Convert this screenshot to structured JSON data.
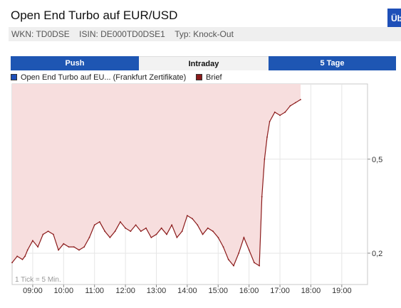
{
  "header": {
    "title": "Open End Turbo auf EUR/USD",
    "corner_button": "Übersicht",
    "wkn": "WKN: TD0DSE",
    "isin": "ISIN: DE000TD0DSE1",
    "typ": "Typ: Knock-Out"
  },
  "tabs": [
    {
      "label": "Push",
      "active": false
    },
    {
      "label": "Intraday",
      "active": true
    },
    {
      "label": "5 Tage",
      "active": false
    }
  ],
  "legend": [
    {
      "label": "Open End Turbo auf EU... (Frankfurt Zertifikate)",
      "color": "#1e4fb8"
    },
    {
      "label": "Brief",
      "color": "#8b1a1a"
    }
  ],
  "chart_data": {
    "type": "area",
    "tick_note": "1 Tick = 5 Min.",
    "x_tick_labels": [
      "09:00",
      "10:00",
      "11:00",
      "12:00",
      "13:00",
      "14:00",
      "15:00",
      "16:00",
      "17:00",
      "18:00",
      "19:00"
    ],
    "y_tick_labels": [
      "0,5",
      "0,2"
    ],
    "y_ticks": [
      0.5,
      0.2
    ],
    "xlim": [
      "08:20",
      "19:50"
    ],
    "ylim": [
      0.1,
      0.74
    ],
    "grid": true,
    "series": [
      {
        "name": "Brief",
        "color": "#8b1a1a",
        "fill": "#f7dede",
        "x": [
          "08:20",
          "08:30",
          "08:40",
          "08:45",
          "08:50",
          "09:00",
          "09:10",
          "09:20",
          "09:30",
          "09:40",
          "09:50",
          "10:00",
          "10:10",
          "10:20",
          "10:30",
          "10:40",
          "10:50",
          "11:00",
          "11:10",
          "11:20",
          "11:30",
          "11:40",
          "11:50",
          "12:00",
          "12:10",
          "12:20",
          "12:30",
          "12:40",
          "12:50",
          "13:00",
          "13:10",
          "13:20",
          "13:30",
          "13:40",
          "13:50",
          "14:00",
          "14:10",
          "14:20",
          "14:30",
          "14:40",
          "14:50",
          "15:00",
          "15:10",
          "15:20",
          "15:30",
          "15:40",
          "15:50",
          "16:00",
          "16:10",
          "16:20",
          "16:25",
          "16:30",
          "16:35",
          "16:40",
          "16:50",
          "17:00",
          "17:10",
          "17:20",
          "17:30",
          "17:40"
        ],
        "y": [
          0.17,
          0.19,
          0.18,
          0.19,
          0.21,
          0.24,
          0.22,
          0.26,
          0.27,
          0.26,
          0.21,
          0.23,
          0.22,
          0.22,
          0.21,
          0.22,
          0.25,
          0.29,
          0.3,
          0.27,
          0.25,
          0.27,
          0.3,
          0.28,
          0.27,
          0.29,
          0.27,
          0.28,
          0.25,
          0.26,
          0.28,
          0.26,
          0.29,
          0.25,
          0.27,
          0.32,
          0.31,
          0.29,
          0.26,
          0.28,
          0.27,
          0.25,
          0.22,
          0.18,
          0.16,
          0.2,
          0.25,
          0.21,
          0.17,
          0.16,
          0.38,
          0.5,
          0.57,
          0.62,
          0.65,
          0.64,
          0.65,
          0.67,
          0.68,
          0.69
        ]
      }
    ]
  }
}
